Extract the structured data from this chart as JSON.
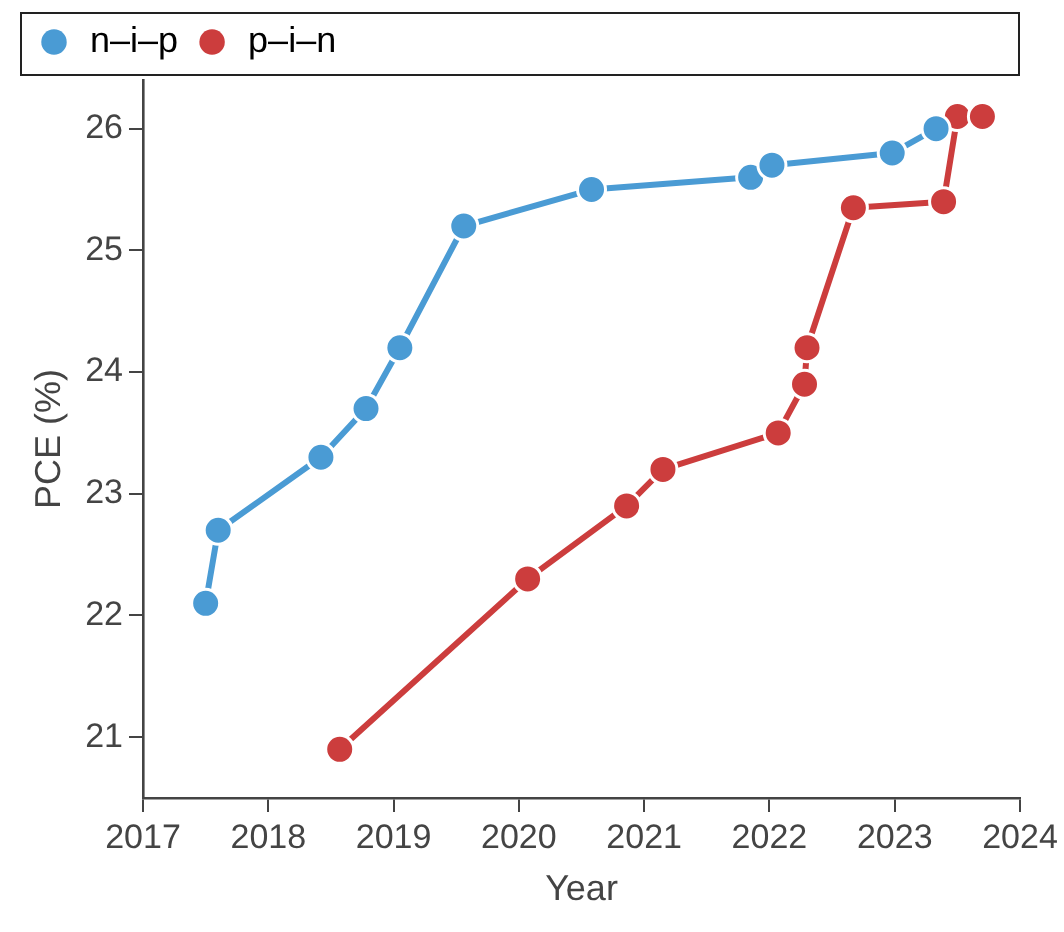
{
  "chart_data": {
    "type": "line",
    "xlabel": "Year",
    "ylabel": "PCE (%)",
    "xlim": [
      2017,
      2024
    ],
    "xticks": [
      2017,
      2018,
      2019,
      2020,
      2021,
      2022,
      2023,
      2024
    ],
    "ylim": [
      20.5,
      26.4
    ],
    "yticks": [
      21,
      22,
      23,
      24,
      25,
      26
    ],
    "grid": false,
    "legend": "top left",
    "marker": "circle",
    "line_style": "solid",
    "series": [
      {
        "name": "n–i–p",
        "color": "#4a9bd4",
        "x": [
          2017.5,
          2017.6,
          2018.42,
          2018.78,
          2019.05,
          2019.56,
          2020.58,
          2021.85,
          2022.02,
          2022.98,
          2023.33
        ],
        "values": [
          22.1,
          22.7,
          23.3,
          23.7,
          24.2,
          25.2,
          25.5,
          25.6,
          25.7,
          25.8,
          26.0
        ]
      },
      {
        "name": "p–i–n",
        "color": "#cc3d3d",
        "x": [
          2018.57,
          2020.07,
          2020.86,
          2021.15,
          2022.07,
          2022.28,
          2022.3,
          2022.67,
          2023.39,
          2023.5,
          2023.7
        ],
        "values": [
          20.9,
          22.3,
          22.9,
          23.2,
          23.5,
          23.9,
          24.2,
          25.35,
          25.4,
          26.1,
          26.1
        ]
      }
    ]
  }
}
